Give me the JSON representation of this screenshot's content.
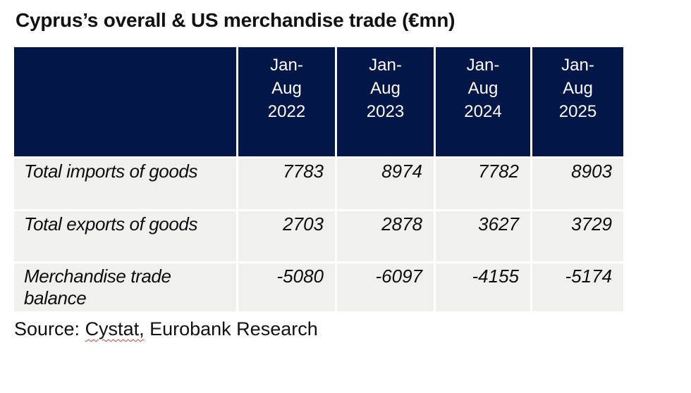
{
  "title": "Cyprus’s overall & US merchandise trade (€mn)",
  "colors": {
    "header_bg": "#021747",
    "header_text": "#ffffff",
    "row_bg": "#f0f0ef",
    "squiggle": "#bf4a43"
  },
  "table": {
    "columns": [
      "",
      "Jan-Aug 2022",
      "Jan-Aug 2023",
      "Jan-Aug 2024",
      "Jan-Aug 2025"
    ],
    "rows": [
      {
        "label": "Total imports of goods",
        "values": [
          "7783",
          "8974",
          "7782",
          "8903"
        ]
      },
      {
        "label": "Total exports of goods",
        "values": [
          "2703",
          "2878",
          "3627",
          "3729"
        ]
      },
      {
        "label": "Merchandise trade balance",
        "values": [
          "-5080",
          "-6097",
          "-4155",
          "-5174"
        ]
      }
    ]
  },
  "source": {
    "prefix": "Source: ",
    "misspelled": "Cystat,",
    "suffix": " Eurobank Research"
  },
  "chart_data": {
    "type": "table",
    "title": "Cyprus’s overall & US merchandise trade (€mn)",
    "categories": [
      "Jan-Aug 2022",
      "Jan-Aug 2023",
      "Jan-Aug 2024",
      "Jan-Aug 2025"
    ],
    "series": [
      {
        "name": "Total imports of goods",
        "values": [
          7783,
          8974,
          7782,
          8903
        ]
      },
      {
        "name": "Total exports of goods",
        "values": [
          2703,
          2878,
          3627,
          3729
        ]
      },
      {
        "name": "Merchandise trade balance",
        "values": [
          -5080,
          -6097,
          -4155,
          -5174
        ]
      }
    ],
    "source": "Source: Cystat, Eurobank Research"
  }
}
